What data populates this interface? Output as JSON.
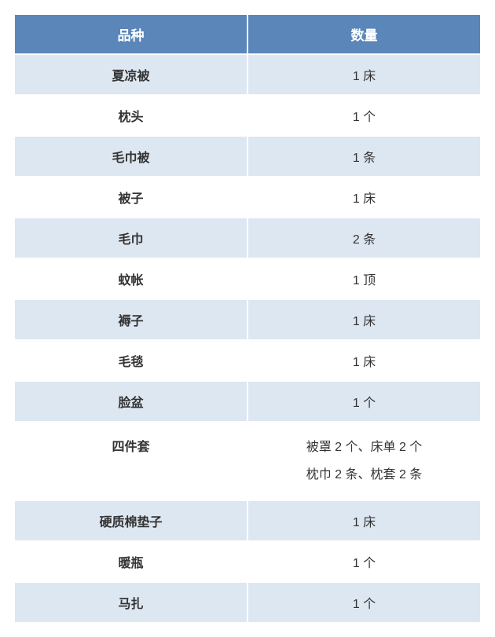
{
  "table": {
    "type": "table",
    "columns": [
      "品种",
      "数量"
    ],
    "header_bg_color": "#5b86b9",
    "header_text_color": "#ffffff",
    "header_fontsize": 17,
    "header_fontweight": "bold",
    "row_odd_bg_color": "#dde7f1",
    "row_even_bg_color": "#ffffff",
    "border_color": "#ffffff",
    "cell_text_color": "#333333",
    "cell_fontsize": 16,
    "col1_fontweight": "bold",
    "col2_fontweight": "normal",
    "column_widths": [
      "50%",
      "50%"
    ],
    "text_align": "center",
    "rows": [
      {
        "item": "夏凉被",
        "quantity": "1 床",
        "multiline": false
      },
      {
        "item": "枕头",
        "quantity": "1 个",
        "multiline": false
      },
      {
        "item": "毛巾被",
        "quantity": "1 条",
        "multiline": false
      },
      {
        "item": "被子",
        "quantity": "1 床",
        "multiline": false
      },
      {
        "item": "毛巾",
        "quantity": "2 条",
        "multiline": false
      },
      {
        "item": "蚊帐",
        "quantity": "1 顶",
        "multiline": false
      },
      {
        "item": "褥子",
        "quantity": "1 床",
        "multiline": false
      },
      {
        "item": "毛毯",
        "quantity": "1 床",
        "multiline": false
      },
      {
        "item": "脸盆",
        "quantity": "1 个",
        "multiline": false
      },
      {
        "item": "四件套",
        "quantity": "被罩 2 个、床单 2 个\n枕巾 2 条、枕套 2 条",
        "multiline": true
      },
      {
        "item": "硬质棉垫子",
        "quantity": "1 床",
        "multiline": false
      },
      {
        "item": "暖瓶",
        "quantity": "1 个",
        "multiline": false
      },
      {
        "item": "马扎",
        "quantity": "1 个",
        "multiline": false
      }
    ]
  }
}
